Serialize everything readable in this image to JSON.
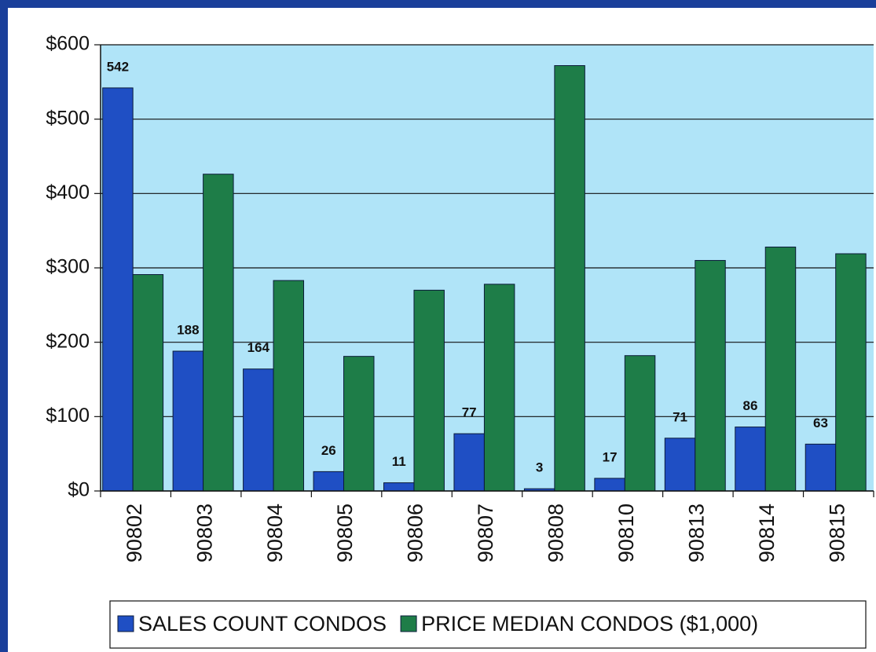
{
  "chart_data": {
    "type": "bar",
    "categories": [
      "90802",
      "90803",
      "90804",
      "90805",
      "90806",
      "90807",
      "90808",
      "90810",
      "90813",
      "90814",
      "90815"
    ],
    "series": [
      {
        "name": "SALES COUNT CONDOS",
        "color": "#1f4fc4",
        "values": [
          542,
          188,
          164,
          26,
          11,
          77,
          3,
          17,
          71,
          86,
          63
        ]
      },
      {
        "name": "PRICE MEDIAN CONDOS ($1,000)",
        "color": "#1e7d48",
        "values": [
          291,
          426,
          283,
          181,
          270,
          278,
          572,
          182,
          310,
          328,
          319
        ]
      }
    ],
    "ylim": [
      0,
      600
    ],
    "yticks": [
      {
        "value": 0,
        "label": "$0"
      },
      {
        "value": 100,
        "label": "$100"
      },
      {
        "value": 200,
        "label": "$200"
      },
      {
        "value": 300,
        "label": "$300"
      },
      {
        "value": 400,
        "label": "$400"
      },
      {
        "value": 500,
        "label": "$500"
      },
      {
        "value": 600,
        "label": "$600"
      }
    ],
    "grid": true,
    "plot_background": "#b0e4f8"
  }
}
